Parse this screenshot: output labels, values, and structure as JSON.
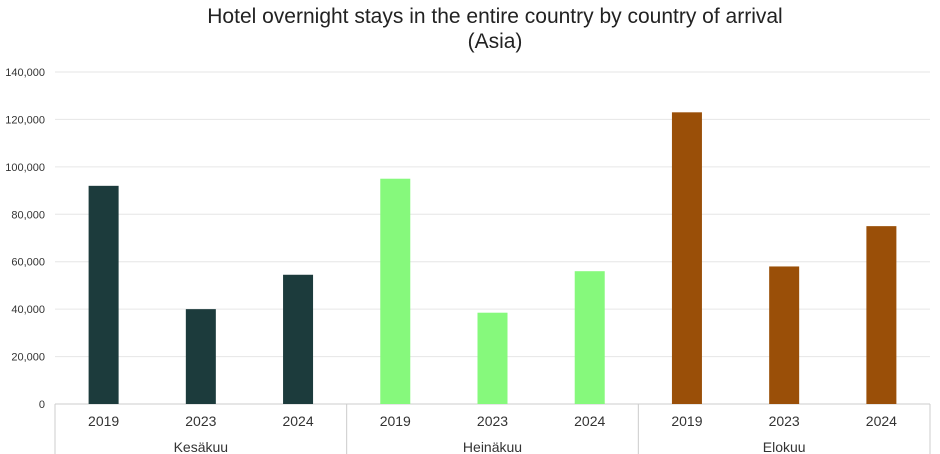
{
  "chart_data": {
    "type": "bar",
    "title": "Hotel overnight stays in the entire country by country of arrival",
    "subtitle": "(Asia)",
    "xlabel": "",
    "ylabel": "",
    "ylim": [
      0,
      140000
    ],
    "yticks": [
      "0",
      "20,000",
      "40,000",
      "60,000",
      "80,000",
      "100,000",
      "120,000",
      "140,000"
    ],
    "grid": true,
    "legend": "none",
    "groups": [
      {
        "label": "Kesäkuu",
        "color": "#1c3b3c",
        "categories": [
          "2019",
          "2023",
          "2024"
        ],
        "values": [
          92000,
          40000,
          54500
        ]
      },
      {
        "label": "Heinäkuu",
        "color": "#86f97c",
        "categories": [
          "2019",
          "2023",
          "2024"
        ],
        "values": [
          95000,
          38500,
          56000
        ]
      },
      {
        "label": "Elokuu",
        "color": "#9a4f08",
        "categories": [
          "2019",
          "2023",
          "2024"
        ],
        "values": [
          123000,
          58000,
          75000
        ]
      }
    ]
  }
}
